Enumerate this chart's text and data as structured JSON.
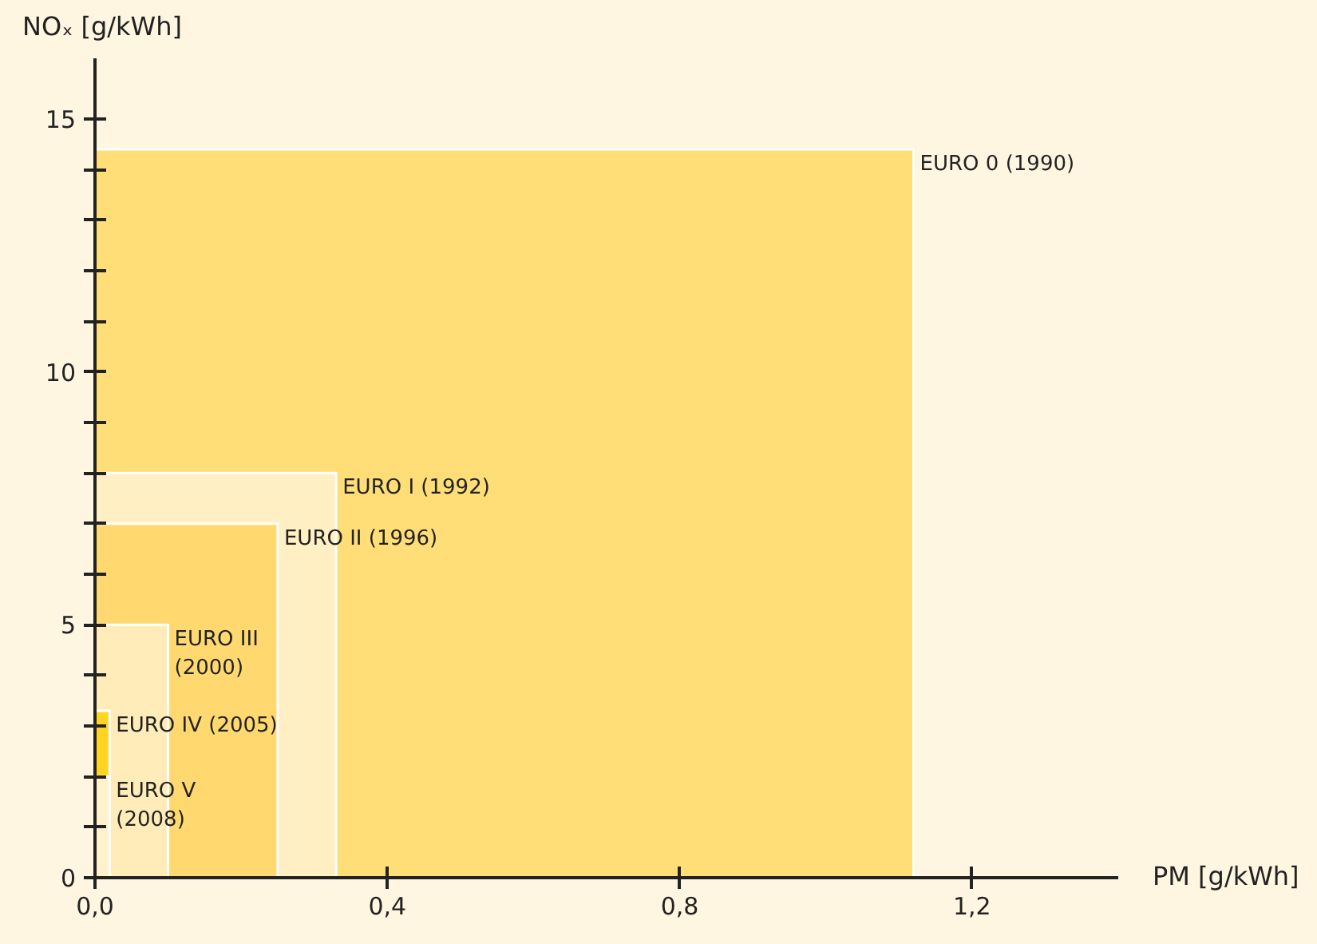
{
  "chart_data": {
    "type": "area",
    "xlabel": "PM [g/kWh]",
    "ylabel": "NOₓ [g/kWh]",
    "series": [
      {
        "name": "EURO 0 (1990)",
        "color": "#ffdd77",
        "x": [
          0,
          1.12
        ],
        "values": [
          14.4,
          14.4
        ]
      },
      {
        "name": "EURO I (1992)",
        "color": "#ffefc2",
        "x": [
          0,
          0.33
        ],
        "values": [
          8,
          8
        ]
      },
      {
        "name": "EURO II (1996)",
        "color": "#ffd970",
        "x": [
          0,
          0.25
        ],
        "values": [
          7,
          7
        ]
      },
      {
        "name": "EURO III\n(2000)",
        "color": "#ffecb8",
        "x": [
          0,
          0.1
        ],
        "values": [
          5,
          5
        ]
      },
      {
        "name": "EURO IV (2005)",
        "color": "#ffd522",
        "x": [
          0,
          0.02
        ],
        "values": [
          3.3,
          3.3
        ]
      },
      {
        "name": "EURO V\n(2008)",
        "color": "#fff1cc",
        "x": [
          0,
          0.02
        ],
        "values": [
          2,
          2
        ]
      }
    ],
    "xlim": [
      0,
      1.4
    ],
    "ylim": [
      0,
      16.2
    ],
    "xticks": [
      {
        "value": 0,
        "label": "0,0"
      },
      {
        "value": 0.4,
        "label": "0,4"
      },
      {
        "value": 0.8,
        "label": "0,8"
      },
      {
        "value": 1.2,
        "label": "1,2"
      }
    ],
    "yticks": [
      0,
      {
        "value": 1,
        "label": null
      },
      {
        "value": 2,
        "label": null
      },
      {
        "value": 3,
        "label": null
      },
      {
        "value": 4,
        "label": null
      },
      5,
      {
        "value": 6,
        "label": null
      },
      {
        "value": 7,
        "label": null
      },
      {
        "value": 8,
        "label": null
      },
      {
        "value": 9,
        "label": null
      },
      10,
      {
        "value": 11,
        "label": null
      },
      {
        "value": 12,
        "label": null
      },
      {
        "value": 13,
        "label": null
      },
      {
        "value": 14,
        "label": null
      },
      15
    ],
    "grid": false
  }
}
